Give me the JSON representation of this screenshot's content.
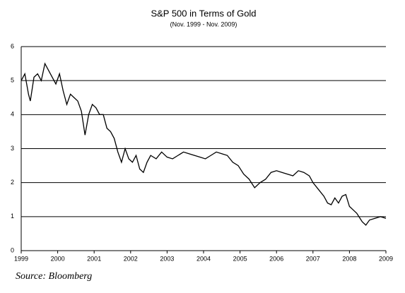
{
  "chart_data": {
    "type": "line",
    "title": "S&P 500 in Terms of Gold",
    "subtitle": "(Nov. 1999 - Nov. 2009)",
    "source": "Source: Bloomberg",
    "x": [
      1999.0,
      1999.1,
      1999.2,
      1999.25,
      1999.35,
      1999.45,
      1999.55,
      1999.65,
      1999.75,
      1999.85,
      1999.95,
      2000.05,
      2000.15,
      2000.25,
      2000.35,
      2000.45,
      2000.55,
      2000.65,
      2000.75,
      2000.85,
      2000.95,
      2001.05,
      2001.15,
      2001.25,
      2001.35,
      2001.45,
      2001.55,
      2001.65,
      2001.75,
      2001.85,
      2001.95,
      2002.05,
      2002.15,
      2002.25,
      2002.35,
      2002.45,
      2002.55,
      2002.7,
      2002.85,
      2003.0,
      2003.15,
      2003.3,
      2003.45,
      2003.6,
      2003.75,
      2003.9,
      2004.05,
      2004.2,
      2004.35,
      2004.5,
      2004.65,
      2004.8,
      2004.95,
      2005.1,
      2005.25,
      2005.4,
      2005.55,
      2005.7,
      2005.85,
      2006.0,
      2006.15,
      2006.3,
      2006.45,
      2006.6,
      2006.75,
      2006.9,
      2007.0,
      2007.15,
      2007.3,
      2007.4,
      2007.5,
      2007.6,
      2007.7,
      2007.8,
      2007.9,
      2008.0,
      2008.1,
      2008.2,
      2008.35,
      2008.45,
      2008.55,
      2008.7,
      2008.85,
      2009.0
    ],
    "series": [
      {
        "name": "S&P 500 / Gold",
        "color": "#000000",
        "values": [
          5.0,
          5.2,
          4.6,
          4.4,
          5.1,
          5.2,
          5.0,
          5.5,
          5.3,
          5.1,
          4.9,
          5.2,
          4.7,
          4.3,
          4.6,
          4.5,
          4.4,
          4.1,
          3.4,
          4.0,
          4.3,
          4.2,
          4.0,
          4.0,
          3.6,
          3.5,
          3.3,
          2.9,
          2.6,
          3.0,
          2.7,
          2.6,
          2.8,
          2.4,
          2.3,
          2.6,
          2.8,
          2.7,
          2.9,
          2.75,
          2.7,
          2.8,
          2.9,
          2.85,
          2.8,
          2.75,
          2.7,
          2.8,
          2.9,
          2.85,
          2.8,
          2.6,
          2.5,
          2.25,
          2.1,
          1.85,
          2.0,
          2.1,
          2.3,
          2.35,
          2.3,
          2.25,
          2.2,
          2.35,
          2.3,
          2.2,
          2.0,
          1.8,
          1.6,
          1.4,
          1.35,
          1.55,
          1.4,
          1.6,
          1.65,
          1.3,
          1.2,
          1.1,
          0.85,
          0.75,
          0.9,
          0.95,
          1.0,
          0.95
        ]
      }
    ],
    "xlim": [
      1999,
      2009
    ],
    "xticks": [
      1999,
      2000,
      2001,
      2002,
      2003,
      2004,
      2005,
      2006,
      2007,
      2008,
      2009
    ],
    "ylim": [
      0,
      6
    ],
    "yticks": [
      0,
      1,
      2,
      3,
      4,
      5,
      6
    ],
    "grid": true
  }
}
